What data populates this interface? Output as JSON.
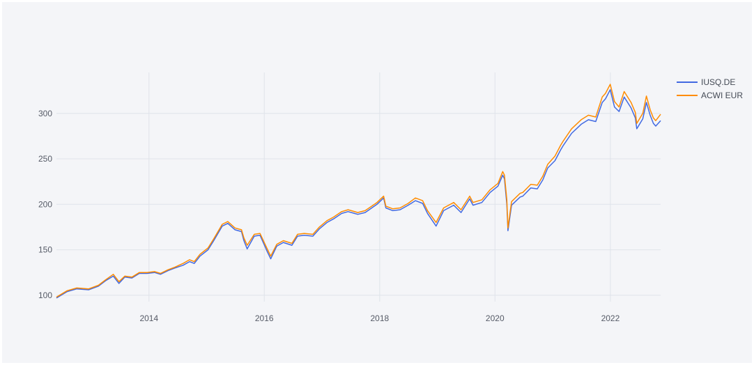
{
  "chart_data": {
    "type": "line",
    "title": "",
    "xlabel": "",
    "ylabel": "",
    "grid": true,
    "legend_position": "top-right",
    "xlim": [
      "2012-05-25",
      "2022-11-15"
    ],
    "ylim": [
      93,
      345
    ],
    "x_ticks": [
      "2014",
      "2016",
      "2018",
      "2020",
      "2022"
    ],
    "y_ticks": [
      100,
      150,
      200,
      250,
      300
    ],
    "colors": {
      "background": "#f4f5f8",
      "grid": "#dfe3ea"
    },
    "series": [
      {
        "name": "IUSQ.DE",
        "color": "#4169e1",
        "x": [
          "2012-05-25",
          "2012-08-01",
          "2012-10-01",
          "2012-12-15",
          "2013-02-15",
          "2013-04-01",
          "2013-05-20",
          "2013-06-25",
          "2013-08-01",
          "2013-09-15",
          "2013-11-01",
          "2013-12-20",
          "2014-02-05",
          "2014-03-15",
          "2014-05-01",
          "2014-06-15",
          "2014-08-05",
          "2014-09-15",
          "2014-10-15",
          "2014-11-20",
          "2015-01-10",
          "2015-02-15",
          "2015-04-10",
          "2015-05-15",
          "2015-06-30",
          "2015-08-10",
          "2015-08-25",
          "2015-09-15",
          "2015-10-30",
          "2015-12-05",
          "2016-01-20",
          "2016-02-11",
          "2016-03-20",
          "2016-05-01",
          "2016-06-24",
          "2016-07-30",
          "2016-09-10",
          "2016-11-04",
          "2016-12-15",
          "2017-02-01",
          "2017-03-15",
          "2017-05-05",
          "2017-06-15",
          "2017-08-15",
          "2017-10-01",
          "2017-12-15",
          "2018-01-26",
          "2018-02-09",
          "2018-03-25",
          "2018-05-10",
          "2018-06-30",
          "2018-08-15",
          "2018-09-30",
          "2018-10-31",
          "2018-12-24",
          "2019-02-10",
          "2019-04-15",
          "2019-05-31",
          "2019-07-25",
          "2019-08-15",
          "2019-10-10",
          "2019-12-01",
          "2020-01-20",
          "2020-02-19",
          "2020-03-01",
          "2020-03-16",
          "2020-03-23",
          "2020-04-15",
          "2020-06-08",
          "2020-06-25",
          "2020-08-15",
          "2020-09-25",
          "2020-10-30",
          "2020-11-30",
          "2021-01-15",
          "2021-02-20",
          "2021-03-10",
          "2021-04-30",
          "2021-06-30",
          "2021-08-15",
          "2021-09-30",
          "2021-11-10",
          "2021-12-01",
          "2021-12-31",
          "2022-01-27",
          "2022-02-25",
          "2022-03-29",
          "2022-05-12",
          "2022-06-08",
          "2022-06-17",
          "2022-07-25",
          "2022-08-17",
          "2022-09-10",
          "2022-09-30",
          "2022-10-15",
          "2022-11-15"
        ],
        "values": [
          97,
          104,
          107,
          106,
          110,
          116,
          121,
          113,
          120,
          119,
          124,
          124,
          125,
          123,
          127,
          130,
          133,
          137,
          135,
          143,
          150,
          160,
          176,
          179,
          172,
          170,
          160,
          151,
          165,
          166,
          148,
          140,
          154,
          158,
          155,
          165,
          166,
          165,
          173,
          180,
          184,
          190,
          192,
          189,
          191,
          200,
          207,
          196,
          193,
          194,
          199,
          204,
          201,
          190,
          176,
          193,
          199,
          191,
          206,
          199,
          202,
          213,
          220,
          232,
          228,
          200,
          171,
          199,
          208,
          209,
          218,
          217,
          227,
          240,
          248,
          260,
          265,
          278,
          288,
          293,
          291,
          312,
          316,
          326,
          307,
          302,
          318,
          306,
          295,
          283,
          294,
          312,
          298,
          289,
          286,
          292
        ]
      },
      {
        "name": "ACWI EUR",
        "color": "#ff8c00",
        "x": [
          "2012-05-25",
          "2012-08-01",
          "2012-10-01",
          "2012-12-15",
          "2013-02-15",
          "2013-04-01",
          "2013-05-20",
          "2013-06-25",
          "2013-08-01",
          "2013-09-15",
          "2013-11-01",
          "2013-12-20",
          "2014-02-05",
          "2014-03-15",
          "2014-05-01",
          "2014-06-15",
          "2014-08-05",
          "2014-09-15",
          "2014-10-15",
          "2014-11-20",
          "2015-01-10",
          "2015-02-15",
          "2015-04-10",
          "2015-05-15",
          "2015-06-30",
          "2015-08-10",
          "2015-08-25",
          "2015-09-15",
          "2015-10-30",
          "2015-12-05",
          "2016-01-20",
          "2016-02-11",
          "2016-03-20",
          "2016-05-01",
          "2016-06-24",
          "2016-07-30",
          "2016-09-10",
          "2016-11-04",
          "2016-12-15",
          "2017-02-01",
          "2017-03-15",
          "2017-05-05",
          "2017-06-15",
          "2017-08-15",
          "2017-10-01",
          "2017-12-15",
          "2018-01-26",
          "2018-02-09",
          "2018-03-25",
          "2018-05-10",
          "2018-06-30",
          "2018-08-15",
          "2018-09-30",
          "2018-10-31",
          "2018-12-24",
          "2019-02-10",
          "2019-04-15",
          "2019-05-31",
          "2019-07-25",
          "2019-08-15",
          "2019-10-10",
          "2019-12-01",
          "2020-01-20",
          "2020-02-19",
          "2020-03-01",
          "2020-03-16",
          "2020-03-23",
          "2020-04-15",
          "2020-06-08",
          "2020-06-25",
          "2020-08-15",
          "2020-09-25",
          "2020-10-30",
          "2020-11-30",
          "2021-01-15",
          "2021-02-20",
          "2021-03-10",
          "2021-04-30",
          "2021-06-30",
          "2021-08-15",
          "2021-09-30",
          "2021-11-10",
          "2021-12-01",
          "2021-12-31",
          "2022-01-27",
          "2022-02-25",
          "2022-03-29",
          "2022-05-12",
          "2022-06-08",
          "2022-06-17",
          "2022-07-25",
          "2022-08-17",
          "2022-09-10",
          "2022-09-30",
          "2022-10-15",
          "2022-11-15"
        ],
        "values": [
          98,
          105,
          108,
          107,
          111,
          117,
          123,
          115,
          121,
          120,
          125,
          125,
          126,
          124,
          128,
          131,
          135,
          139,
          137,
          145,
          152,
          162,
          178,
          181,
          174,
          172,
          163,
          155,
          167,
          168,
          151,
          143,
          156,
          160,
          157,
          167,
          168,
          167,
          175,
          182,
          186,
          192,
          194,
          191,
          193,
          202,
          209,
          198,
          195,
          196,
          201,
          207,
          204,
          193,
          180,
          196,
          202,
          194,
          209,
          202,
          205,
          216,
          223,
          236,
          232,
          205,
          174,
          203,
          212,
          213,
          222,
          221,
          231,
          244,
          253,
          265,
          270,
          283,
          293,
          298,
          296,
          318,
          322,
          332,
          313,
          307,
          324,
          312,
          301,
          289,
          300,
          319,
          304,
          295,
          292,
          299
        ]
      }
    ]
  }
}
